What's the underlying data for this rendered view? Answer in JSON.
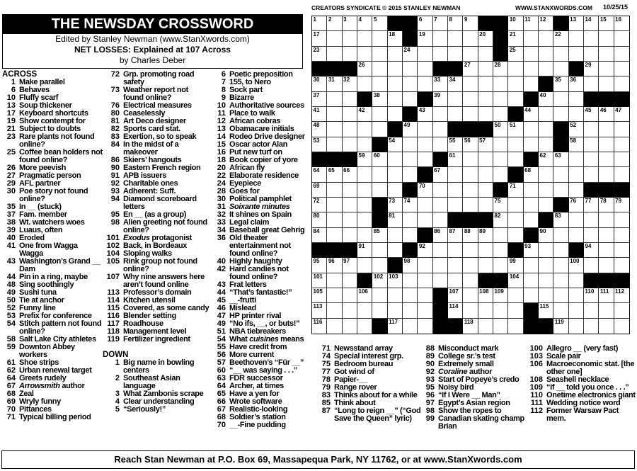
{
  "header": {
    "title": "THE NEWSDAY CROSSWORD",
    "editor": "Edited by Stanley Newman (www.StanXwords.com)",
    "puzzle_title": "NET LOSSES: Explained at 107 Across",
    "author": "by Charles Deber"
  },
  "grid_header": {
    "copyright": "CREATORS SYNDICATE © 2015 STANLEY NEWMAN",
    "website": "WWW.STANXWORDS.COM",
    "date": "10/25/15"
  },
  "grid": {
    "rows": [
      "WWWWW##WWWW##WWW#WWWW",
      "WWWWWW#WWWWW#WWWWWWWW",
      "WWWWWWWWWWWW#WWWWWWWW",
      "###WWWWW##WWWWWWW#WWW",
      "WWWWWWWWWWWWWWW#WWWWW",
      "WWW#WWW#WWWWWW#WWW###",
      "WWWWWW#WWWWWW#WWWWWWW",
      "WWWWW#WWW###WWWW#WWWW",
      "WWWW#WWWWWWWWWWW#WWWW",
      "###WWWWW#WWWWW#WWWWWW",
      "WWWWWWW#WWWWW#WWWWWWW",
      "WWWWWW#WWWWW#WWWWW###",
      "WWWW#WWWWWWWWWWW#WWWW",
      "WWWW#WWWW###WWW#WWWWW",
      "WWWWWWW#WWWWWW#WWWWWW",
      "###WWW#WWWWWW#WWW#WWW",
      "WWWWW#WWWWWWWWWWWWWWW",
      "WWW#WWWWWWW##WWWWW###",
      "WWWWWWWW#WWWWWWWWWWWW",
      "WWWWWWWW#WWWWW#WWWWWW",
      "WWWW#WWW##WWWW##WWWWW"
    ]
  },
  "labels": {
    "across": "ACROSS",
    "down": "DOWN"
  },
  "across": [
    {
      "n": "1",
      "t": "Make parallel"
    },
    {
      "n": "6",
      "t": "Behaves"
    },
    {
      "n": "10",
      "t": "Fluffy scarf"
    },
    {
      "n": "13",
      "t": "Soup thickener"
    },
    {
      "n": "17",
      "t": "Keyboard shortcuts"
    },
    {
      "n": "19",
      "t": "Show contempt for"
    },
    {
      "n": "21",
      "t": "Subject to doubts"
    },
    {
      "n": "23",
      "t": "Rare plants not found online?"
    },
    {
      "n": "25",
      "t": "Coffee bean holders not found online?"
    },
    {
      "n": "26",
      "t": "More peevish"
    },
    {
      "n": "27",
      "t": "Pragmatic person"
    },
    {
      "n": "29",
      "t": "AFL partner"
    },
    {
      "n": "30",
      "t": "Poe story not found online?"
    },
    {
      "n": "35",
      "t": "In __ (stuck)"
    },
    {
      "n": "37",
      "t": "Fam. member"
    },
    {
      "n": "38",
      "t": "Wt. watchers woes"
    },
    {
      "n": "39",
      "t": "Luaus, often"
    },
    {
      "n": "40",
      "t": "Eroded"
    },
    {
      "n": "41",
      "t": "One from Wagga Wagga"
    },
    {
      "n": "43",
      "t": "Washington’s Grand __ Dam"
    },
    {
      "n": "44",
      "t": "Pin in a ring, maybe"
    },
    {
      "n": "48",
      "t": "Sing soothingly"
    },
    {
      "n": "49",
      "t": "Sushi tuna"
    },
    {
      "n": "50",
      "t": "Tie at anchor"
    },
    {
      "n": "52",
      "t": "Funny line"
    },
    {
      "n": "53",
      "t": "Prefix for conference"
    },
    {
      "n": "54",
      "t": "Stitch pattern not found online?"
    },
    {
      "n": "58",
      "t": "Salt Lake City athletes"
    },
    {
      "n": "59",
      "t": "Downton Abbey workers"
    },
    {
      "n": "61",
      "t": "Shoe strips"
    },
    {
      "n": "62",
      "t": "Urban renewal target"
    },
    {
      "n": "64",
      "t": "Greets rudely"
    },
    {
      "n": "67",
      "t": " author",
      "i": "Arrowsmith"
    },
    {
      "n": "68",
      "t": "Zeal"
    },
    {
      "n": "69",
      "t": "Wryly funny"
    },
    {
      "n": "70",
      "t": "Pittances"
    },
    {
      "n": "71",
      "t": "Typical billing period"
    },
    {
      "n": "72",
      "t": "Grp. promoting road safety"
    },
    {
      "n": "73",
      "t": "Weather report not found online?"
    },
    {
      "n": "76",
      "t": "Electrical measures"
    },
    {
      "n": "80",
      "t": "Ceaselessly"
    },
    {
      "n": "81",
      "t": "Art Deco designer"
    },
    {
      "n": "82",
      "t": "Sports card stat."
    },
    {
      "n": "83",
      "t": "Exertion, so to speak"
    },
    {
      "n": "84",
      "t": "In the midst of a makeover"
    },
    {
      "n": "86",
      "t": "Skiers’ hangouts"
    },
    {
      "n": "90",
      "t": "Eastern French region"
    },
    {
      "n": "91",
      "t": "APB issuers"
    },
    {
      "n": "92",
      "t": "Charitable ones"
    },
    {
      "n": "93",
      "t": "Adherent: Suff."
    },
    {
      "n": "94",
      "t": "Diamond scoreboard letters"
    },
    {
      "n": "95",
      "t": "En __ (as a group)"
    },
    {
      "n": "98",
      "t": "Alien greeting not found online?"
    },
    {
      "n": "101",
      "t": " protagonist",
      "i": "Exodus"
    },
    {
      "n": "102",
      "t": "Back, in Bordeaux"
    },
    {
      "n": "104",
      "t": "Sloping walks"
    },
    {
      "n": "105",
      "t": "Rink group not found online?"
    },
    {
      "n": "107",
      "t": "Why nine answers here aren’t found online"
    },
    {
      "n": "113",
      "t": "Professor’s domain"
    },
    {
      "n": "114",
      "t": "Kitchen utensil"
    },
    {
      "n": "115",
      "t": "Covered, as some candy"
    },
    {
      "n": "116",
      "t": "Blender setting"
    },
    {
      "n": "117",
      "t": "Roadhouse"
    },
    {
      "n": "118",
      "t": "Management level"
    },
    {
      "n": "119",
      "t": "Fertilizer ingredient"
    }
  ],
  "down": [
    {
      "n": "1",
      "t": "Big name in bowling centers"
    },
    {
      "n": "2",
      "t": "Southeast Asian language"
    },
    {
      "n": "3",
      "t": "What Zambonis scrape"
    },
    {
      "n": "4",
      "t": "Clear understanding"
    },
    {
      "n": "5",
      "t": "“Seriously!”"
    },
    {
      "n": "6",
      "t": "Poetic preposition"
    },
    {
      "n": "7",
      "t": "155, to Nero"
    },
    {
      "n": "8",
      "t": "Sock part"
    },
    {
      "n": "9",
      "t": "Bizarre"
    },
    {
      "n": "10",
      "t": "Authoritative sources"
    },
    {
      "n": "11",
      "t": "Place to walk"
    },
    {
      "n": "12",
      "t": "African cobras"
    },
    {
      "n": "13",
      "t": "Obamacare initials"
    },
    {
      "n": "14",
      "t": "Rodeo Drive designer"
    },
    {
      "n": "15",
      "t": "Oscar actor Alan"
    },
    {
      "n": "16",
      "t": "Put new turf on"
    },
    {
      "n": "18",
      "t": "Book copier of yore"
    },
    {
      "n": "20",
      "t": "African fly"
    },
    {
      "n": "22",
      "t": "Elaborate residence"
    },
    {
      "n": "24",
      "t": "Eyepiece"
    },
    {
      "n": "28",
      "t": "Goes for"
    },
    {
      "n": "30",
      "t": "Political pamphlet"
    },
    {
      "n": "31",
      "t": "",
      "i": "Soixante minutes"
    },
    {
      "n": "32",
      "t": "It shines on Spain"
    },
    {
      "n": "33",
      "t": "Legal claim"
    },
    {
      "n": "34",
      "t": "Baseball great Gehrig"
    },
    {
      "n": "36",
      "t": "Old theater entertainment not found online?"
    },
    {
      "n": "40",
      "t": "Highly haughty"
    },
    {
      "n": "42",
      "t": "Hard candies not found online?"
    },
    {
      "n": "43",
      "t": "Frat letters"
    },
    {
      "n": "44",
      "t": "“That’s fantastic!”"
    },
    {
      "n": "45",
      "t": "__-frutti"
    },
    {
      "n": "46",
      "t": "Mislead"
    },
    {
      "n": "47",
      "t": "HP printer rival"
    },
    {
      "n": "49",
      "t": "“No ifs, __, or buts!”"
    },
    {
      "n": "51",
      "t": "NBA tiebreakers"
    },
    {
      "n": "54",
      "p": "What ",
      "i": "cuisines",
      "t": " means"
    },
    {
      "n": "55",
      "t": "Have credit from"
    },
    {
      "n": "56",
      "t": "More current"
    },
    {
      "n": "57",
      "t": "Beethoven’s “Für __”"
    },
    {
      "n": "60",
      "t": "“__ was saying . . .”"
    },
    {
      "n": "63",
      "t": "FDR successor"
    },
    {
      "n": "64",
      "t": "Archer, at times"
    },
    {
      "n": "65",
      "t": "Have a yen for"
    },
    {
      "n": "66",
      "t": "Wrote software"
    },
    {
      "n": "67",
      "t": "Realistic-looking"
    },
    {
      "n": "68",
      "t": "Soldier’s station"
    },
    {
      "n": "70",
      "t": "__-Fine pudding"
    },
    {
      "n": "71",
      "t": "Newsstand array"
    },
    {
      "n": "74",
      "t": "Special interest grp."
    },
    {
      "n": "75",
      "t": "Bedroom bureau"
    },
    {
      "n": "77",
      "t": "Got wind of"
    },
    {
      "n": "78",
      "t": "Papier-__"
    },
    {
      "n": "79",
      "t": "Range rover"
    },
    {
      "n": "83",
      "t": "Thinks about for a while"
    },
    {
      "n": "85",
      "t": "Think about"
    },
    {
      "n": "87",
      "t": "“Long to reign __” (“God Save the Queen” lyric)"
    },
    {
      "n": "88",
      "t": "Misconduct mark"
    },
    {
      "n": "89",
      "t": "College sr.’s test"
    },
    {
      "n": "90",
      "t": "Extremely small"
    },
    {
      "n": "92",
      "t": " author",
      "i": "Coraline"
    },
    {
      "n": "93",
      "t": "Start of Popeye’s credo"
    },
    {
      "n": "95",
      "t": "Noisy bird"
    },
    {
      "n": "96",
      "t": "“If I Were __ Man”"
    },
    {
      "n": "97",
      "t": "Egypt’s Asian region"
    },
    {
      "n": "98",
      "t": "Show the ropes to"
    },
    {
      "n": "99",
      "t": "Canadian skating champ Brian"
    },
    {
      "n": "100",
      "t": "Allegro __ (very fast)"
    },
    {
      "n": "103",
      "t": "Scale pair"
    },
    {
      "n": "106",
      "t": "Macroeconomic stat. [the other one]"
    },
    {
      "n": "108",
      "t": "Seashell necklace"
    },
    {
      "n": "109",
      "t": "“If __ told you once . . .”"
    },
    {
      "n": "110",
      "t": "Onetime electronics giant"
    },
    {
      "n": "111",
      "t": "Wedding notice word"
    },
    {
      "n": "112",
      "t": "Former Warsaw Pact mem."
    }
  ],
  "footer": {
    "text": "Reach Stan Newman at P.O. Box 69, Massapequa Park, NY 11762, or at www.StanXwords.com"
  }
}
